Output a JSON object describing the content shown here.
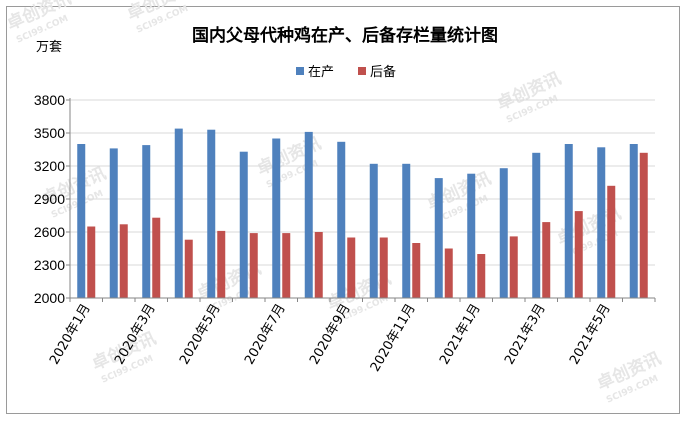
{
  "chart_data": {
    "type": "bar",
    "title": "国内父母代种鸡在产、后备存栏量统计图",
    "ylabel": "万套",
    "ylim": [
      2000,
      3800
    ],
    "yticks": [
      2000,
      2300,
      2600,
      2900,
      3200,
      3500,
      3800
    ],
    "categories": [
      "2020年1月",
      "2020年2月",
      "2020年3月",
      "2020年4月",
      "2020年5月",
      "2020年6月",
      "2020年7月",
      "2020年8月",
      "2020年9月",
      "2020年10月",
      "2020年11月",
      "2020年12月",
      "2021年1月",
      "2021年2月",
      "2021年3月",
      "2021年4月",
      "2021年5月",
      "2021年6月"
    ],
    "tick_labels": [
      "2020年1月",
      "2020年3月",
      "2020年5月",
      "2020年7月",
      "2020年9月",
      "2020年11月",
      "2021年1月",
      "2021年3月",
      "2021年5月"
    ],
    "series": [
      {
        "name": "在产",
        "color": "#4f81bd",
        "values": [
          3400,
          3360,
          3390,
          3540,
          3530,
          3330,
          3450,
          3510,
          3420,
          3220,
          3220,
          3090,
          3130,
          3180,
          3320,
          3400,
          3370,
          3400
        ]
      },
      {
        "name": "后备",
        "color": "#c0504d",
        "values": [
          2650,
          2670,
          2730,
          2530,
          2610,
          2590,
          2590,
          2600,
          2550,
          2550,
          2500,
          2450,
          2400,
          2560,
          2690,
          2790,
          3020,
          3320
        ]
      }
    ],
    "legend": "top-center",
    "grid": true
  },
  "watermark": {
    "brand": "卓创资讯",
    "site": "SCI99.COM"
  }
}
